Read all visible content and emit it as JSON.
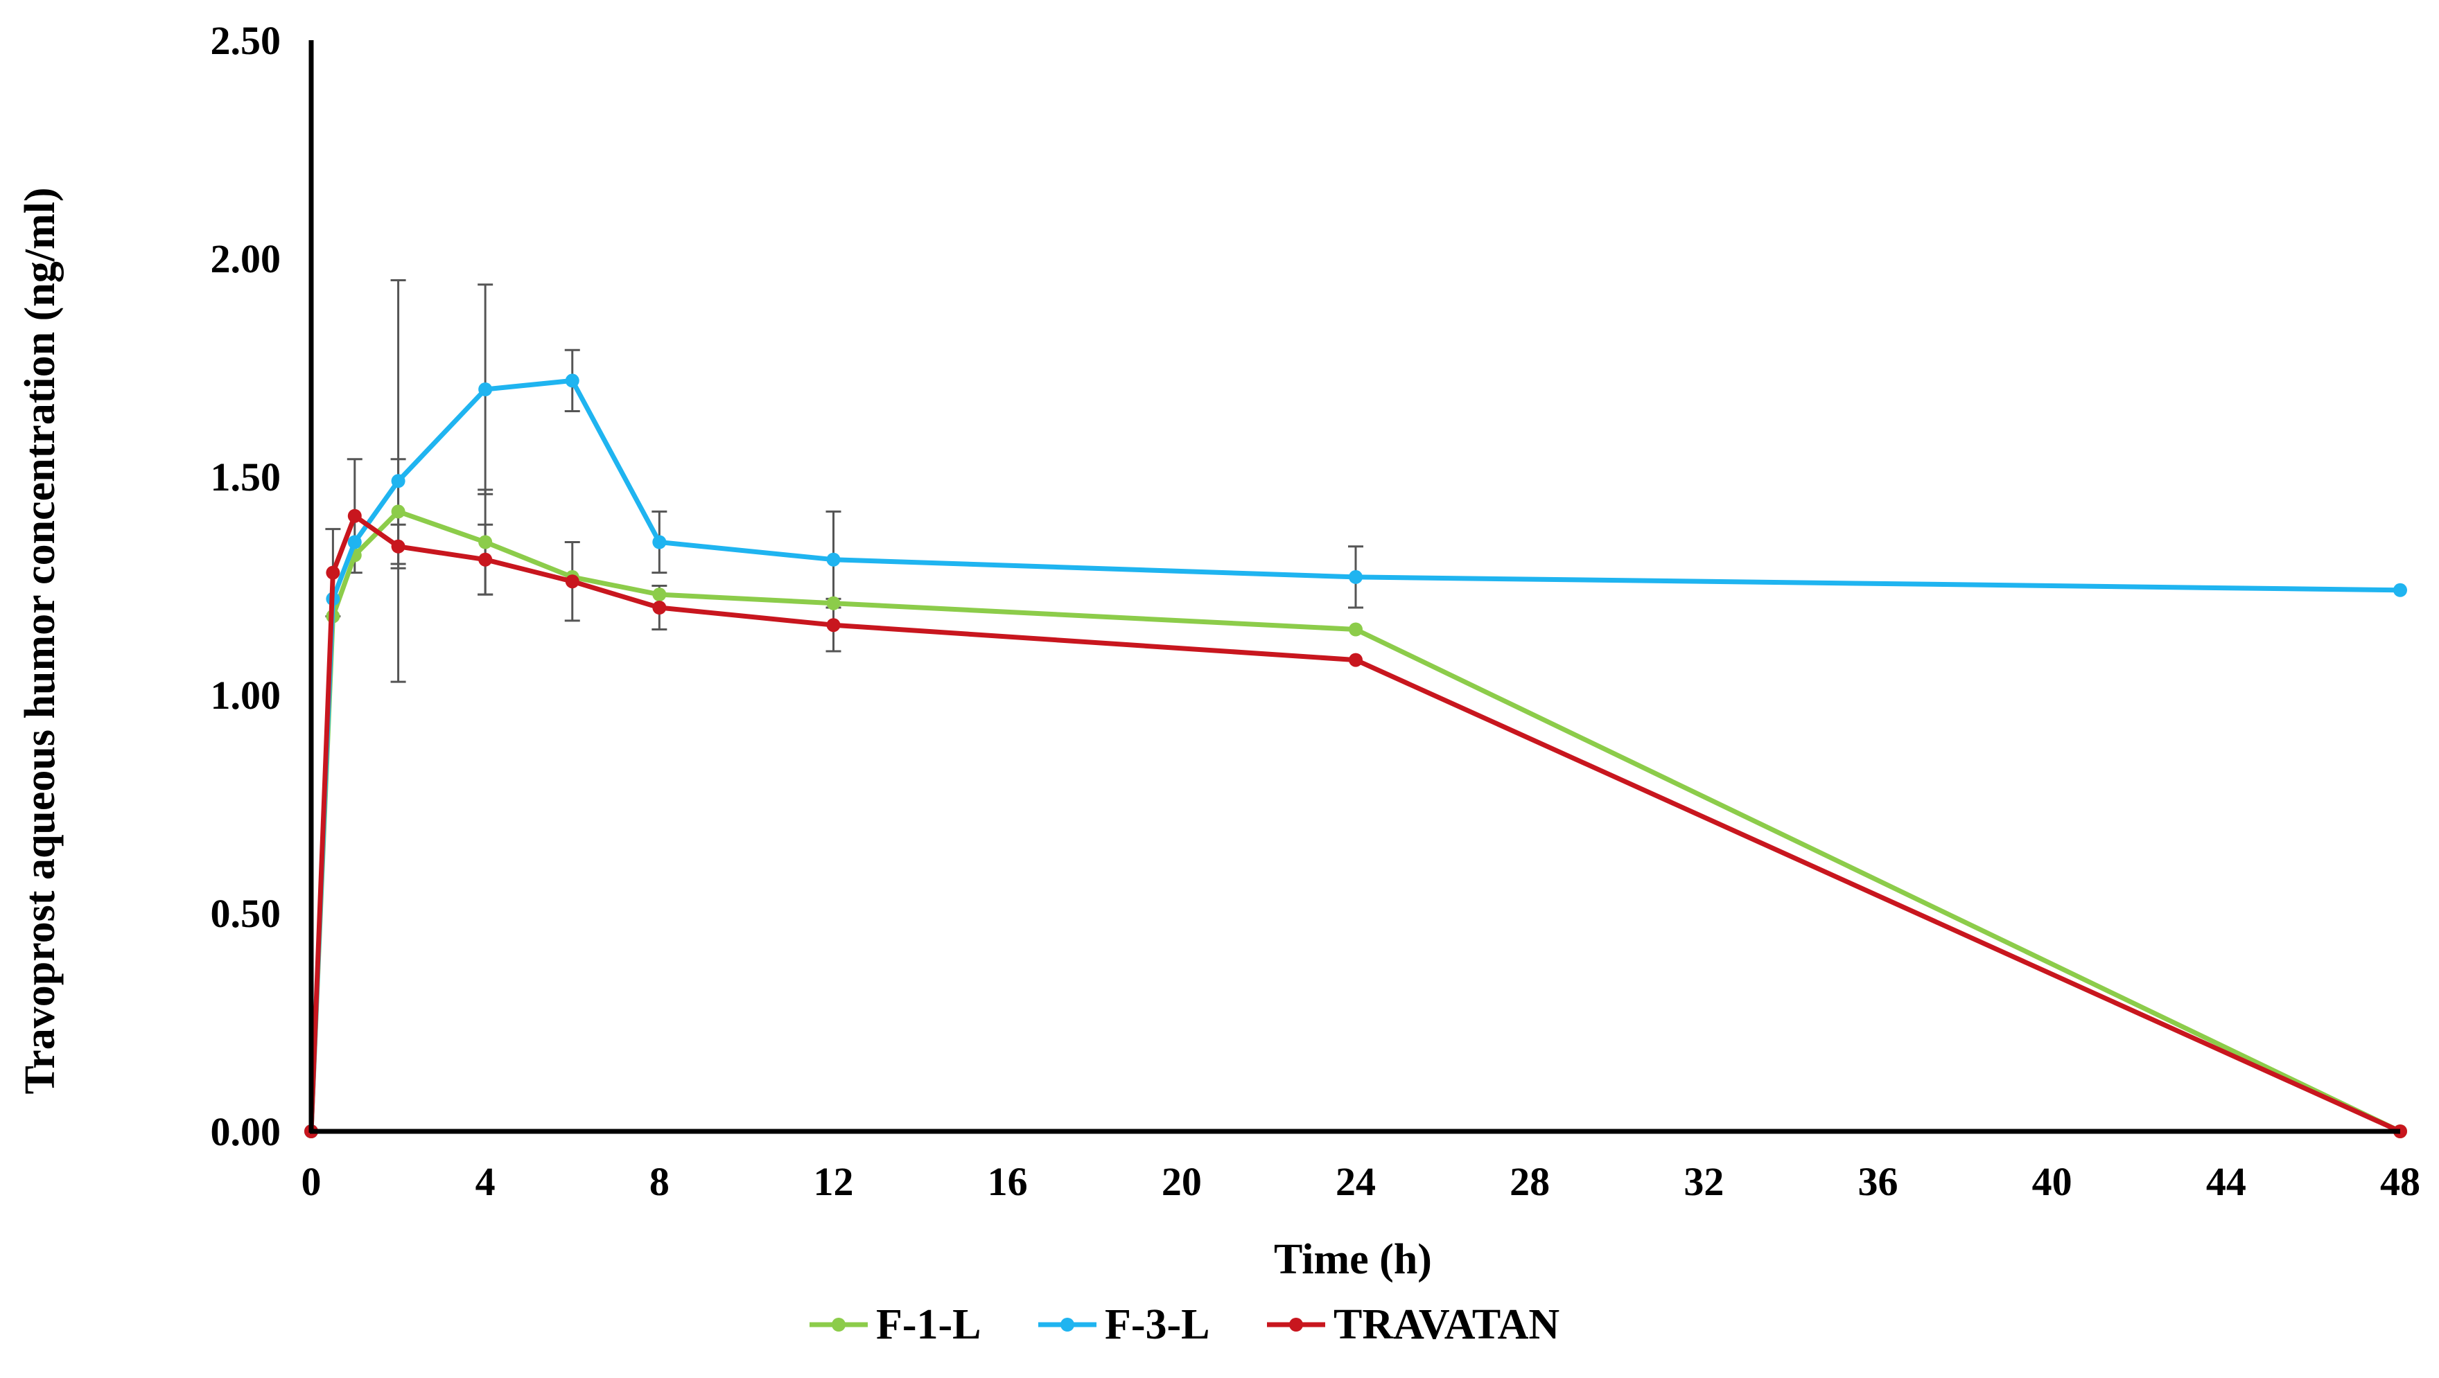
{
  "chart_data": {
    "type": "line",
    "title": "",
    "xlabel": "Time (h)",
    "ylabel": "Travoprost aqueous humor concentration (ng/ml)",
    "xlim": [
      0,
      48
    ],
    "ylim": [
      0,
      2.5
    ],
    "x_ticks": [
      0,
      4,
      8,
      12,
      16,
      20,
      24,
      28,
      32,
      36,
      40,
      44,
      48
    ],
    "y_ticks": [
      "0.00",
      "0.50",
      "1.00",
      "1.50",
      "2.00",
      "2.50"
    ],
    "grid": false,
    "legend_position": "bottom",
    "series": [
      {
        "name": "F-1-L",
        "color": "#8ccc4a",
        "x": [
          0,
          0.5,
          1,
          2,
          4,
          6,
          8,
          12,
          24,
          48
        ],
        "values": [
          0,
          1.18,
          1.32,
          1.42,
          1.35,
          1.27,
          1.23,
          1.21,
          1.15,
          0
        ],
        "errors": [
          0,
          0,
          0,
          0.12,
          0.12,
          0,
          0,
          0,
          0,
          0
        ]
      },
      {
        "name": "F-3-L",
        "color": "#1fb4f0",
        "x": [
          0,
          0.5,
          1,
          2,
          4,
          6,
          8,
          12,
          24,
          48
        ],
        "values": [
          0,
          1.22,
          1.35,
          1.49,
          1.7,
          1.72,
          1.35,
          1.31,
          1.27,
          1.24
        ],
        "errors": [
          0,
          0,
          0,
          0.46,
          0.24,
          0.07,
          0.07,
          0.11,
          0.07,
          0
        ]
      },
      {
        "name": "TRAVATAN",
        "color": "#c8161e",
        "x": [
          0,
          0.5,
          1,
          2,
          4,
          6,
          8,
          12,
          24,
          48
        ],
        "values": [
          0,
          1.28,
          1.41,
          1.34,
          1.31,
          1.26,
          1.2,
          1.16,
          1.08,
          0
        ],
        "errors": [
          0,
          0.1,
          0.13,
          0.05,
          0.08,
          0.09,
          0.05,
          0.06,
          0,
          0
        ]
      }
    ]
  }
}
